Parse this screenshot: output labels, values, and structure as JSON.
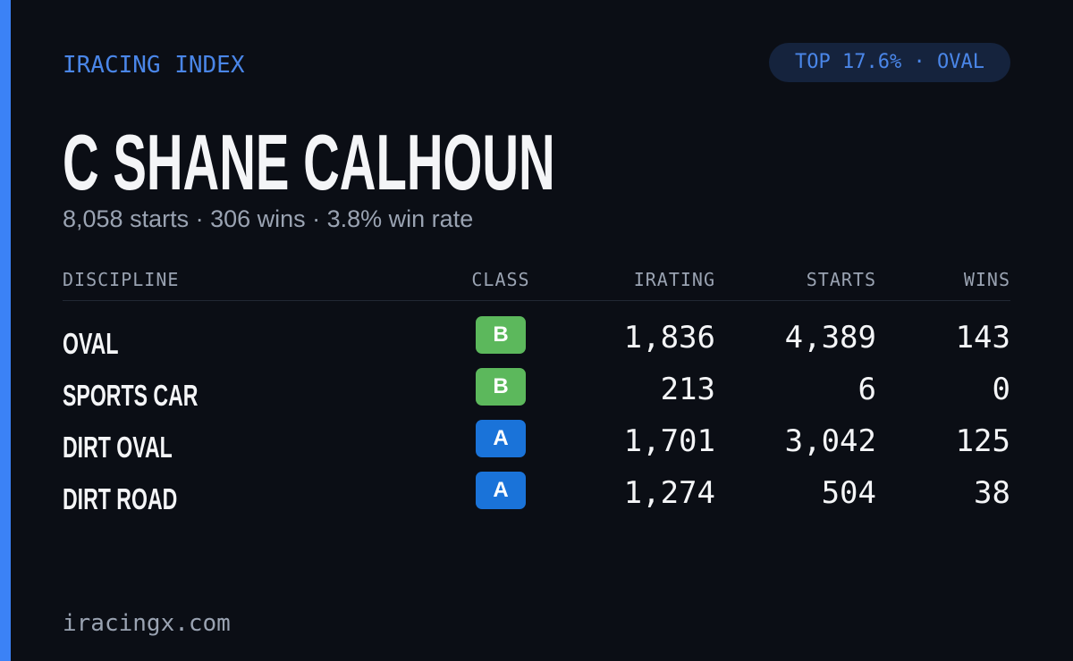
{
  "header": {
    "brand": "IRACING INDEX",
    "badge": "TOP 17.6% · OVAL"
  },
  "title": "C SHANE CALHOUN",
  "subtitle": "8,058 starts · 306 wins · 3.8% win rate",
  "table": {
    "columns": [
      "DISCIPLINE",
      "CLASS",
      "IRATING",
      "STARTS",
      "WINS"
    ],
    "rows": [
      [
        "OVAL",
        "B",
        "1,836",
        "4,389",
        "143"
      ],
      [
        "SPORTS CAR",
        "B",
        "213",
        "6",
        "0"
      ],
      [
        "DIRT OVAL",
        "A",
        "1,701",
        "3,042",
        "125"
      ],
      [
        "DIRT ROAD",
        "A",
        "1,274",
        "504",
        "38"
      ]
    ]
  },
  "footer": "iracingx.com"
}
